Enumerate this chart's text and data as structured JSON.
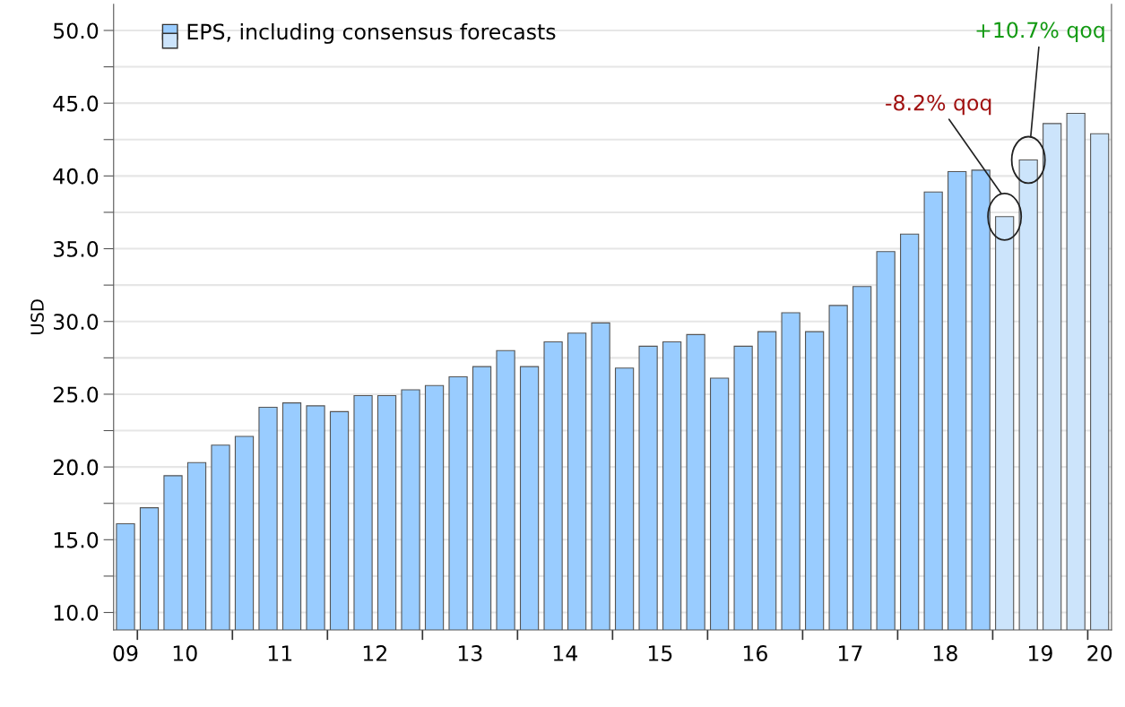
{
  "chart_data": {
    "type": "bar",
    "ylabel": "USD",
    "categories": [
      "09",
      null,
      "10",
      null,
      null,
      null,
      "11",
      null,
      null,
      null,
      "12",
      null,
      null,
      null,
      "13",
      null,
      null,
      null,
      "14",
      null,
      null,
      null,
      "15",
      null,
      null,
      null,
      "16",
      null,
      null,
      null,
      "17",
      null,
      null,
      null,
      "18",
      null,
      null,
      null,
      "19",
      null,
      null,
      "20"
    ],
    "series": [
      {
        "name": "EPS, including consensus forecasts",
        "color": "#99ccff",
        "values": [
          16.1,
          17.2,
          19.4,
          20.3,
          21.5,
          22.1,
          24.1,
          24.4,
          24.2,
          23.8,
          24.9,
          24.9,
          25.3,
          25.6,
          26.2,
          26.9,
          28.0,
          26.9,
          28.6,
          29.2,
          29.9,
          26.8,
          28.3,
          28.6,
          29.1,
          26.1,
          28.3,
          29.3,
          30.6,
          29.3,
          31.1,
          32.4,
          34.8,
          36.0,
          38.9,
          40.3,
          40.4,
          null,
          null,
          null,
          null,
          null
        ]
      },
      {
        "color": "#cce4fb",
        "values": [
          null,
          null,
          null,
          null,
          null,
          null,
          null,
          null,
          null,
          null,
          null,
          null,
          null,
          null,
          null,
          null,
          null,
          null,
          null,
          null,
          null,
          null,
          null,
          null,
          null,
          null,
          null,
          null,
          null,
          null,
          null,
          null,
          null,
          null,
          null,
          null,
          null,
          37.2,
          41.1,
          43.6,
          44.3,
          42.9
        ]
      }
    ],
    "ylim": [
      8.8,
      51.8
    ],
    "yticks": [
      {
        "value": 10,
        "label": "10.0"
      },
      {
        "value": 12.5,
        "label": null
      },
      {
        "value": 15,
        "label": "15.0"
      },
      {
        "value": 17.5,
        "label": null
      },
      {
        "value": 20,
        "label": "20.0"
      },
      {
        "value": 22.5,
        "label": null
      },
      {
        "value": 25,
        "label": "25.0"
      },
      {
        "value": 27.5,
        "label": null
      },
      {
        "value": 30,
        "label": "30.0"
      },
      {
        "value": 32.5,
        "label": null
      },
      {
        "value": 35,
        "label": "35.0"
      },
      {
        "value": 37.5,
        "label": null
      },
      {
        "value": 40,
        "label": "40.0"
      },
      {
        "value": 42.5,
        "label": null
      },
      {
        "value": 45,
        "label": "45.0"
      },
      {
        "value": 47.5,
        "label": null
      },
      {
        "value": 50,
        "label": "50.0"
      }
    ],
    "grid": "y",
    "legend": "top left",
    "annotations": [
      "-8.2% qoq",
      "+10.7% qoq"
    ]
  }
}
